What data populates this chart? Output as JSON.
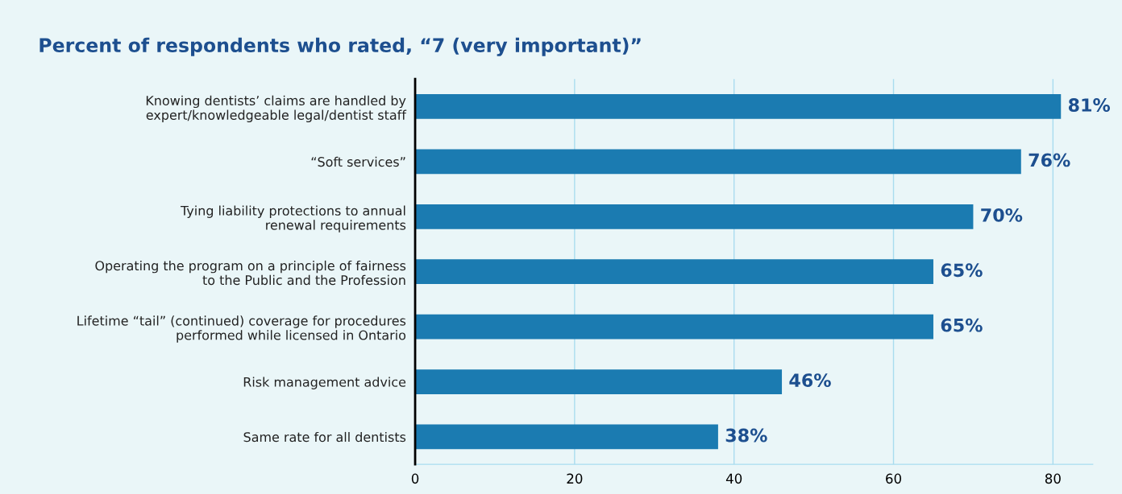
{
  "chart_data": {
    "type": "bar",
    "orientation": "horizontal",
    "title": "Percent of respondents who rated, “7 (very important)”",
    "categories": [
      "Knowing dentists’ claims are handled by\nexpert/knowledgeable legal/dentist staff",
      "“Soft services”",
      "Tying liability protections to annual\nrenewal requirements",
      "Operating the program on a principle of fairness\nto the Public and the Profession",
      "Lifetime “tail” (continued) coverage for procedures\nperformed while licensed in Ontario",
      "Risk management advice",
      "Same rate for all dentists"
    ],
    "values": [
      81,
      76,
      70,
      65,
      65,
      46,
      38
    ],
    "value_labels": [
      "81%",
      "76%",
      "70%",
      "65%",
      "65%",
      "46%",
      "38%"
    ],
    "color": "#1b7bb1",
    "xlim": [
      0,
      85
    ],
    "xticks": [
      0,
      20,
      40,
      60,
      80
    ],
    "grid": "x",
    "legend": false
  }
}
